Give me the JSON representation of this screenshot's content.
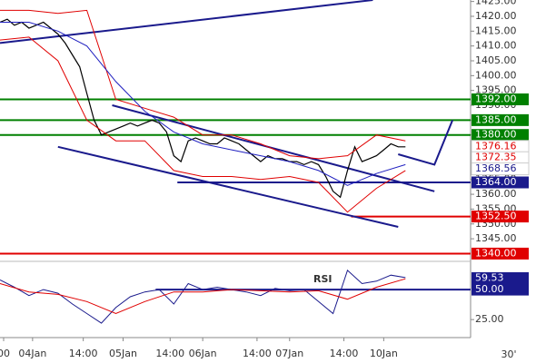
{
  "chart_data": [
    {
      "type": "line",
      "timeframe": "30'",
      "xlim": [
        0,
        130
      ],
      "ylim": [
        1338.3,
        1425.5
      ],
      "xticks": [
        {
          "value": 1,
          "label": "00"
        },
        {
          "value": 9,
          "label": "04Jan"
        },
        {
          "value": 23,
          "label": "14:00"
        },
        {
          "value": 34,
          "label": "05Jan"
        },
        {
          "value": 47,
          "label": "14:00"
        },
        {
          "value": 56,
          "label": "06Jan"
        },
        {
          "value": 71,
          "label": "14:00"
        },
        {
          "value": 80,
          "label": "07Jan"
        },
        {
          "value": 95,
          "label": "14:00"
        },
        {
          "value": 106,
          "label": "10Jan"
        }
      ],
      "yticks": [
        {
          "value": 1425,
          "label": "1425.00"
        },
        {
          "value": 1420,
          "label": "1420.00"
        },
        {
          "value": 1415,
          "label": "1415.00"
        },
        {
          "value": 1410,
          "label": "1410.00"
        },
        {
          "value": 1405,
          "label": "1405.00"
        },
        {
          "value": 1400,
          "label": "1400.00"
        },
        {
          "value": 1395,
          "label": "1395.00"
        },
        {
          "value": 1390,
          "label": "1390.00"
        },
        {
          "value": 1385,
          "label": "1385.00"
        },
        {
          "value": 1380,
          "label": "1380.00"
        },
        {
          "value": 1375,
          "label": "1375.00"
        },
        {
          "value": 1370,
          "label": "1370.00"
        },
        {
          "value": 1365,
          "label": "1365.00"
        },
        {
          "value": 1360,
          "label": "1360.00"
        },
        {
          "value": 1355,
          "label": "1355.00"
        },
        {
          "value": 1350,
          "label": "1350.00"
        },
        {
          "value": 1345,
          "label": "1345.00"
        }
      ],
      "series": [
        {
          "color": "#000000",
          "width": 1.2,
          "x": [
            0,
            2,
            4,
            6,
            8,
            10,
            12,
            14,
            16,
            18,
            20,
            22,
            24,
            26,
            28,
            30,
            32,
            34,
            36,
            38,
            40,
            42,
            44,
            46,
            48,
            50,
            52,
            54,
            56,
            58,
            60,
            62,
            64,
            66,
            68,
            70,
            72,
            74,
            76,
            78,
            80,
            82,
            84,
            86,
            88,
            90,
            92,
            94,
            96,
            98,
            100,
            102,
            104,
            106,
            108,
            110,
            112
          ],
          "values": [
            1418,
            1419,
            1417,
            1418,
            1416,
            1417,
            1418,
            1416,
            1414,
            1411,
            1407,
            1403,
            1394,
            1385,
            1380,
            1381,
            1382,
            1383,
            1384,
            1383,
            1384,
            1385,
            1384,
            1381,
            1373,
            1371,
            1378,
            1379,
            1378,
            1377,
            1377,
            1379,
            1378,
            1377,
            1375,
            1373,
            1371,
            1373,
            1372,
            1372,
            1371,
            1371,
            1370,
            1371,
            1370,
            1366,
            1361,
            1359,
            1368,
            1376,
            1371,
            1372,
            1373,
            1375,
            1377,
            1376,
            1376
          ]
        },
        {
          "color": "#e00000",
          "width": 1,
          "x": [
            0,
            8,
            16,
            24,
            32,
            40,
            48,
            56,
            64,
            72,
            80,
            88,
            96,
            104,
            112
          ],
          "values": [
            1422,
            1422,
            1421,
            1422,
            1392,
            1389,
            1386,
            1380,
            1380,
            1377,
            1373,
            1372,
            1373,
            1380,
            1378
          ]
        },
        {
          "color": "#e00000",
          "width": 1,
          "x": [
            0,
            8,
            16,
            24,
            32,
            40,
            48,
            56,
            64,
            72,
            80,
            88,
            96,
            104,
            112
          ],
          "values": [
            1412,
            1413,
            1405,
            1385,
            1378,
            1378,
            1368,
            1366,
            1366,
            1365,
            1366,
            1364,
            1354,
            1362,
            1368
          ]
        },
        {
          "color": "#2020c0",
          "width": 1,
          "x": [
            0,
            8,
            16,
            24,
            32,
            40,
            48,
            56,
            64,
            72,
            80,
            88,
            96,
            104,
            112
          ],
          "values": [
            1418,
            1418,
            1415,
            1410,
            1398,
            1388,
            1381,
            1377,
            1375,
            1373,
            1371,
            1368,
            1363,
            1367,
            1370
          ]
        }
      ],
      "trendlines": [
        {
          "color": "#1a1a8c",
          "x": [
            0,
            103
          ],
          "values": [
            1411,
            1425.5
          ]
        },
        {
          "color": "#1a1a8c",
          "x": [
            31,
            120
          ],
          "values": [
            1390,
            1361
          ]
        },
        {
          "color": "#1a1a8c",
          "x": [
            16,
            110
          ],
          "values": [
            1376,
            1349
          ]
        },
        {
          "color": "#1a1a8c",
          "x": [
            110,
            120,
            125
          ],
          "values": [
            1373.5,
            1370,
            1385
          ]
        }
      ],
      "levels": [
        {
          "value": 1392,
          "label": "1392.00",
          "color": "#008000",
          "xstart": 0,
          "style": "fill"
        },
        {
          "value": 1385,
          "label": "1385.00",
          "color": "#008000",
          "xstart": 0,
          "style": "fill"
        },
        {
          "value": 1380,
          "label": "1380.00",
          "color": "#008000",
          "xstart": 0,
          "style": "fill"
        },
        {
          "value": 1376.16,
          "label": "1376.16",
          "color": "#e00000",
          "style": "text"
        },
        {
          "value": 1372.35,
          "label": "1372.35",
          "color": "#e00000",
          "style": "text"
        },
        {
          "value": 1368.56,
          "label": "1368.56",
          "color": "#1a1a8c",
          "style": "text"
        },
        {
          "value": 1364,
          "label": "1364.00",
          "color": "#1a1a8c",
          "xstart": 49,
          "style": "fill"
        },
        {
          "value": 1352.5,
          "label": "1352.50",
          "color": "#e00000",
          "xstart": 97,
          "style": "fill"
        },
        {
          "value": 1340,
          "label": "1340.00",
          "color": "#e00000",
          "xstart": 0,
          "style": "fill"
        }
      ]
    },
    {
      "type": "line",
      "title": "RSI",
      "xlim": [
        0,
        130
      ],
      "ylim": [
        10,
        72
      ],
      "yticks": [
        {
          "value": 25,
          "label": "25.00"
        }
      ],
      "series": [
        {
          "color": "#1a1a8c",
          "width": 1,
          "x": [
            0,
            4,
            8,
            12,
            16,
            20,
            24,
            28,
            32,
            36,
            40,
            44,
            48,
            52,
            56,
            60,
            64,
            68,
            72,
            76,
            80,
            84,
            88,
            92,
            96,
            100,
            104,
            108,
            112
          ],
          "values": [
            58,
            52,
            45,
            50,
            47,
            38,
            30,
            22,
            35,
            44,
            48,
            50,
            38,
            55,
            50,
            52,
            50,
            48,
            45,
            51,
            49,
            50,
            40,
            30,
            66,
            55,
            57,
            62,
            60
          ]
        },
        {
          "color": "#e00000",
          "width": 1,
          "x": [
            0,
            8,
            16,
            24,
            32,
            40,
            48,
            56,
            64,
            72,
            80,
            88,
            96,
            104,
            112
          ],
          "values": [
            55,
            48,
            46,
            40,
            30,
            40,
            48,
            48,
            50,
            49,
            48,
            49,
            42,
            52,
            59
          ]
        }
      ],
      "levels": [
        {
          "value": 59.53,
          "label": "59.53",
          "color": "#1a1a8c",
          "style": "fill"
        },
        {
          "value": 50,
          "label": "50.00",
          "color": "#1a1a8c",
          "xstart": 43,
          "style": "fill"
        }
      ]
    }
  ]
}
